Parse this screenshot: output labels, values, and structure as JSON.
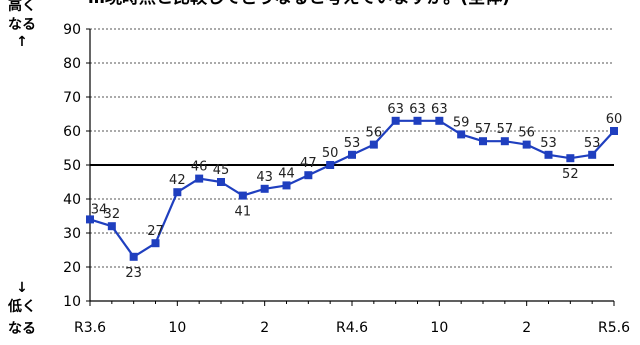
{
  "chart_data": {
    "type": "line",
    "title": "…現時点と比較してどうなると考えていますか。(全体)",
    "side_labels": {
      "top_line1": "高く",
      "top_line2": "なる",
      "top_arrow": "↑",
      "bottom_arrow": "↓",
      "bottom_line1": "低く",
      "bottom_line2": "なる"
    },
    "ylim": [
      10,
      90
    ],
    "yticks": [
      10,
      20,
      30,
      40,
      50,
      60,
      70,
      80,
      90
    ],
    "reference_line": 50,
    "grid": true,
    "x_tick_labels": [
      {
        "index": 0,
        "label": "R3.6"
      },
      {
        "index": 4,
        "label": "10"
      },
      {
        "index": 8,
        "label": "2"
      },
      {
        "index": 12,
        "label": "R4.6"
      },
      {
        "index": 16,
        "label": "10"
      },
      {
        "index": 20,
        "label": "2"
      },
      {
        "index": 24,
        "label": "R5.6"
      }
    ],
    "series": [
      {
        "color": "#1f3fbf",
        "values": [
          34,
          32,
          23,
          27,
          42,
          46,
          45,
          41,
          43,
          44,
          47,
          50,
          53,
          56,
          63,
          63,
          63,
          59,
          57,
          57,
          56,
          53,
          52,
          53,
          60
        ]
      }
    ]
  }
}
